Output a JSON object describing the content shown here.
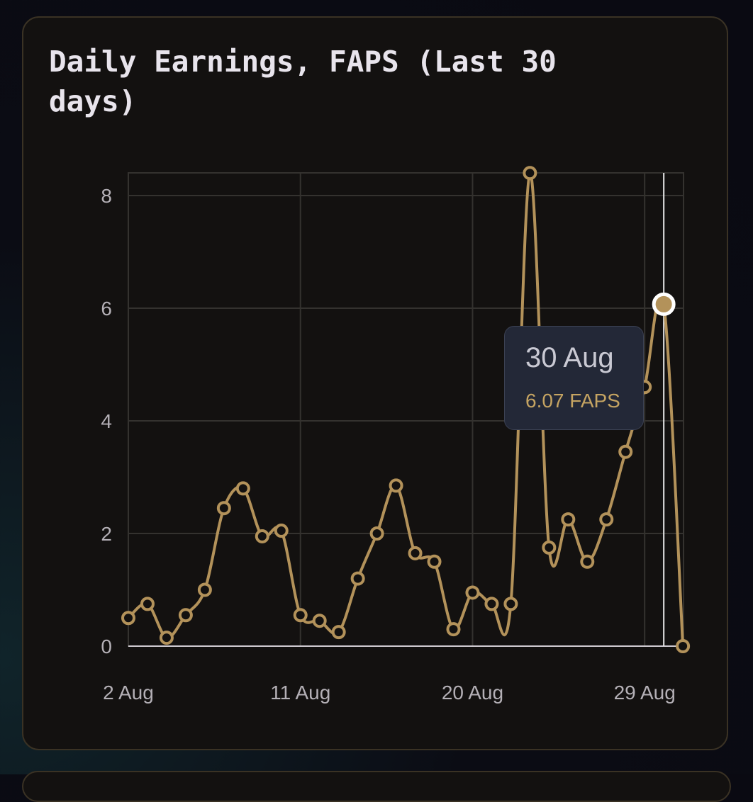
{
  "card": {
    "title": "Daily Earnings, FAPS (Last 30 days)"
  },
  "tooltip": {
    "date": "30 Aug",
    "value": "6.07 FAPS"
  },
  "colors": {
    "line": "#b3925a",
    "grid": "#34322f",
    "axis": "#cfcbd1",
    "crosshair": "#e6e6e6",
    "tooltip_bg": "#232837"
  },
  "chart_data": {
    "type": "line",
    "title": "Daily Earnings, FAPS (Last 30 days)",
    "x": [
      "2 Aug",
      "3 Aug",
      "4 Aug",
      "5 Aug",
      "6 Aug",
      "7 Aug",
      "8 Aug",
      "9 Aug",
      "10 Aug",
      "11 Aug",
      "12 Aug",
      "13 Aug",
      "14 Aug",
      "15 Aug",
      "16 Aug",
      "17 Aug",
      "18 Aug",
      "19 Aug",
      "20 Aug",
      "21 Aug",
      "22 Aug",
      "23 Aug",
      "24 Aug",
      "25 Aug",
      "26 Aug",
      "27 Aug",
      "28 Aug",
      "29 Aug",
      "30 Aug",
      "31 Aug"
    ],
    "series": [
      {
        "values": [
          0.5,
          0.75,
          0.15,
          0.55,
          1.0,
          2.45,
          2.8,
          1.95,
          2.05,
          0.55,
          0.45,
          0.25,
          1.2,
          2.0,
          2.85,
          1.65,
          1.5,
          0.3,
          0.95,
          0.75,
          0.75,
          8.4,
          1.75,
          2.25,
          1.5,
          2.25,
          3.45,
          4.6,
          6.07,
          0.0
        ]
      }
    ],
    "xticks": [
      "2 Aug",
      "11 Aug",
      "20 Aug",
      "29 Aug"
    ],
    "yticks": [
      0,
      2,
      4,
      6,
      8
    ],
    "ylim": [
      0,
      8.4
    ],
    "grid": true,
    "highlighted": {
      "x": "30 Aug",
      "y": 6.07
    }
  }
}
